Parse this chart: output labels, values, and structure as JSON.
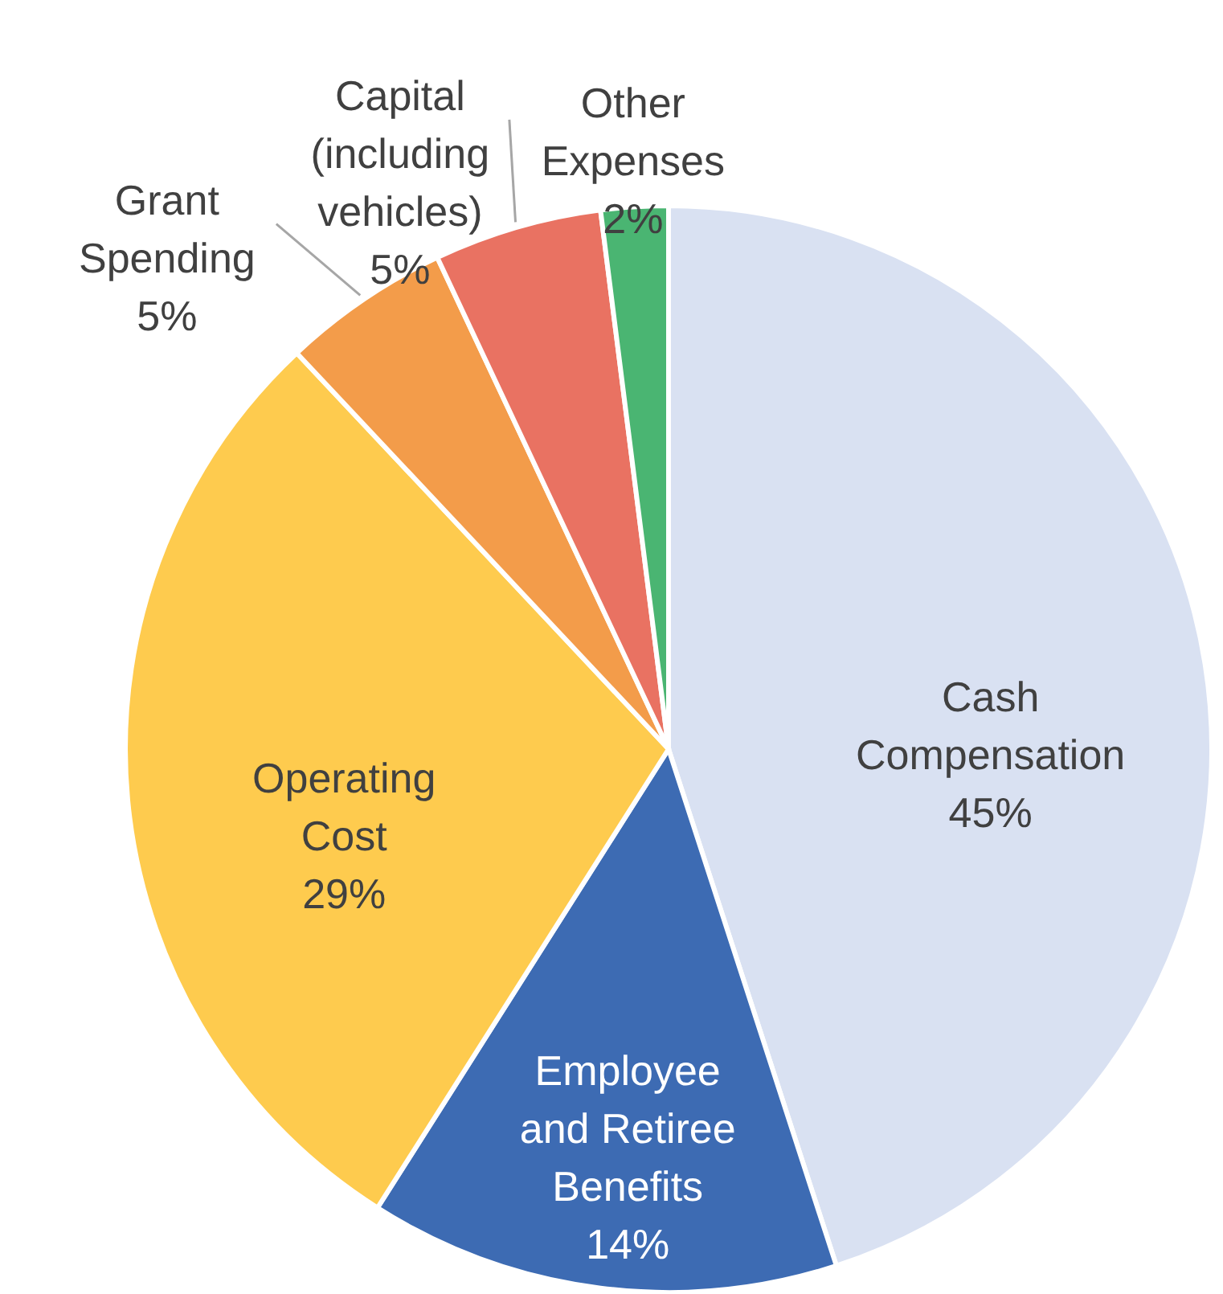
{
  "chart_data": {
    "type": "pie",
    "categories": [
      "Cash Compensation",
      "Employee and Retiree Benefits",
      "Operating Cost",
      "Grant Spending",
      "Capital (including vehicles)",
      "Other Expenses"
    ],
    "values": [
      45,
      14,
      29,
      5,
      5,
      2
    ],
    "colors": [
      "#d9e1f2",
      "#3d6bb3",
      "#fecb4e",
      "#f39c4a",
      "#e97262",
      "#4ab572"
    ],
    "value_labels": [
      "45%",
      "14%",
      "29%",
      "5%",
      "5%",
      "2%"
    ]
  }
}
